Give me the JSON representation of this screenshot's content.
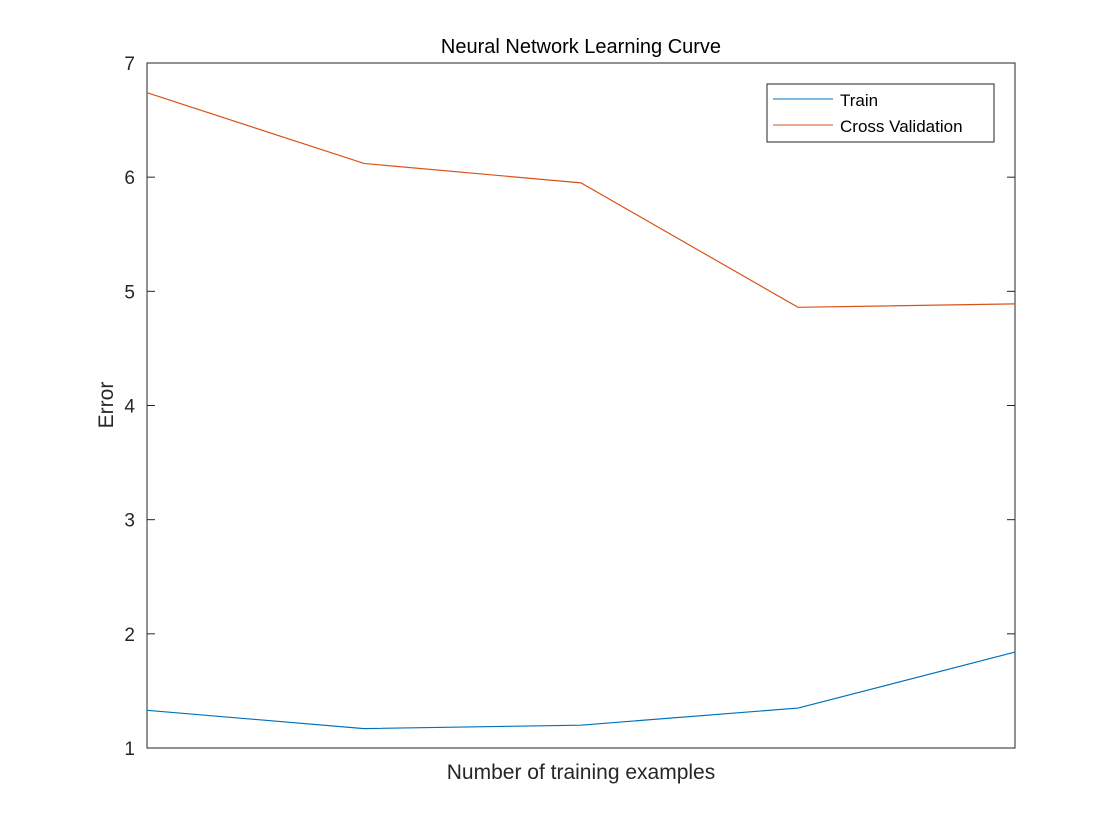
{
  "chart_data": {
    "type": "line",
    "title": "Neural Network Learning Curve",
    "xlabel": "Number of training examples",
    "ylabel": "Error",
    "x": [
      1,
      2,
      3,
      4,
      5
    ],
    "xlim": [
      1,
      5
    ],
    "ylim": [
      1,
      7
    ],
    "yticks": [
      "1",
      "2",
      "3",
      "4",
      "5",
      "6",
      "7"
    ],
    "xticks": [],
    "grid": false,
    "legend_position": "top-right",
    "series": [
      {
        "name": "Train",
        "color": "#0072BD",
        "values": [
          1.33,
          1.17,
          1.2,
          1.35,
          1.84
        ]
      },
      {
        "name": "Cross Validation",
        "color": "#D95319",
        "values": [
          6.74,
          6.12,
          5.95,
          4.86,
          4.89
        ]
      }
    ]
  }
}
